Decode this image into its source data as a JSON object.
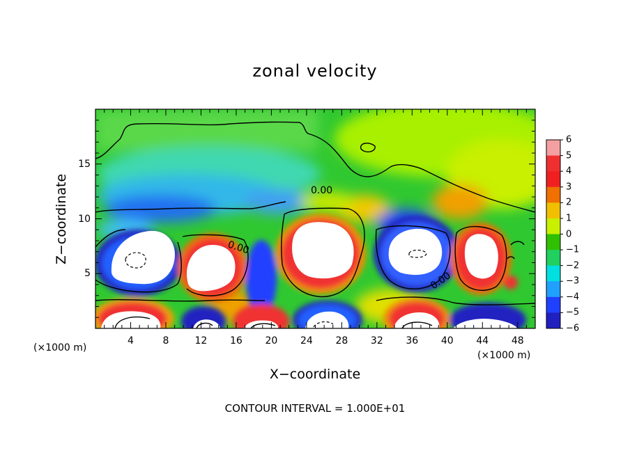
{
  "chart_data": {
    "type": "heatmap",
    "title": "zonal velocity",
    "xlabel": "X−coordinate",
    "ylabel": "Z−coordinate",
    "x_unit_note_left": "(×1000 m)",
    "x_unit_note_right": "(×1000 m)",
    "xlim": [
      0,
      50
    ],
    "ylim": [
      0,
      20
    ],
    "xticks": [
      "4",
      "8",
      "12",
      "16",
      "20",
      "24",
      "28",
      "32",
      "36",
      "40",
      "44",
      "48"
    ],
    "xtick_values": [
      4,
      8,
      12,
      16,
      20,
      24,
      28,
      32,
      36,
      40,
      44,
      48
    ],
    "yticks": [
      "5",
      "10",
      "15"
    ],
    "ytick_values": [
      5,
      10,
      15
    ],
    "colorbar": {
      "levels": [
        "6",
        "5",
        "4",
        "3",
        "2",
        "1",
        "0",
        "−1",
        "−2",
        "−3",
        "−4",
        "−5",
        "−6"
      ],
      "level_values": [
        6,
        5,
        4,
        3,
        2,
        1,
        0,
        -1,
        -2,
        -3,
        -4,
        -5,
        -6
      ],
      "colors": [
        "#f4a0a0",
        "#f03030",
        "#f02020",
        "#f07000",
        "#f0c000",
        "#c8f000",
        "#30c000",
        "#20d060",
        "#00e0e0",
        "#20a0ff",
        "#2040ff",
        "#2020c0",
        "#7000a0"
      ]
    },
    "contour_labels": [
      "0.00",
      "0.00",
      "0.00"
    ],
    "contour_interval_text": "CONTOUR INTERVAL = 1.000E+01",
    "grid": false
  }
}
